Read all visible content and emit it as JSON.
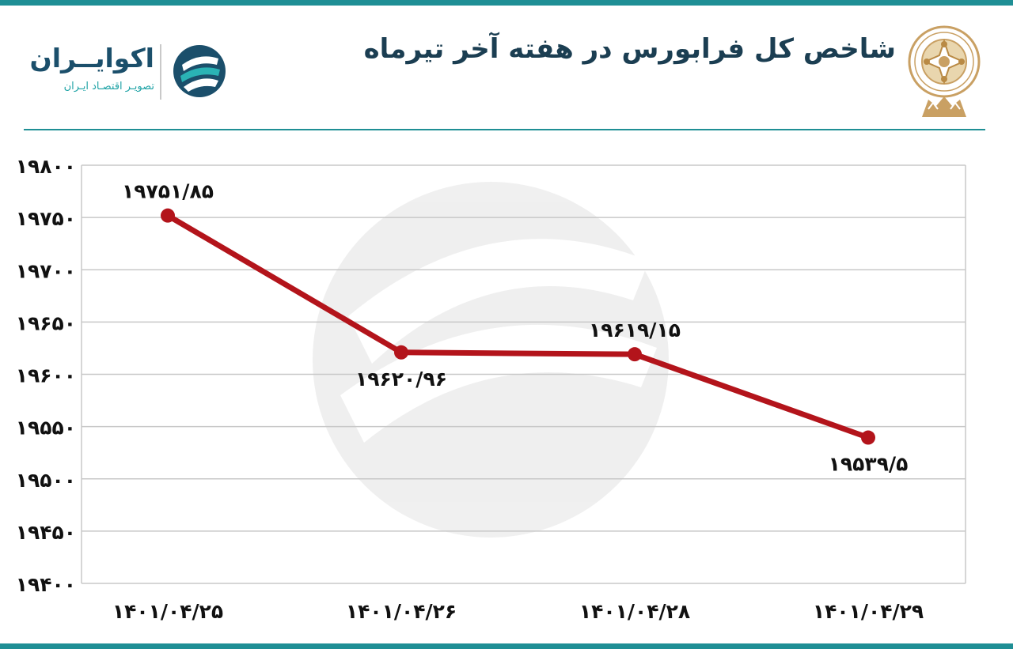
{
  "header": {
    "title": "شاخص کل فرابورس در هفته آخر تیرماه",
    "brand_name": "اکوایــران",
    "brand_tagline": "تصویـر اقتصـاد ایـران"
  },
  "colors": {
    "accent_teal": "#1f8f95",
    "line": "#b3141b",
    "grid": "#c8c8c8",
    "seal_gold": "#c9a063"
  },
  "icons": [
    "ecoiran-logo-icon",
    "stock-exchange-seal-icon"
  ],
  "chart_data": {
    "type": "line",
    "categories": [
      "۱۴۰۱/۰۴/۲۵",
      "۱۴۰۱/۰۴/۲۶",
      "۱۴۰۱/۰۴/۲۸",
      "۱۴۰۱/۰۴/۲۹"
    ],
    "values": [
      19751.85,
      19620.96,
      19619.15,
      19539.5
    ],
    "data_labels": [
      "۱۹۷۵۱/۸۵",
      "۱۹۶۲۰/۹۶",
      "۱۹۶۱۹/۱۵",
      "۱۹۵۳۹/۵"
    ],
    "ylim": [
      19400,
      19800
    ],
    "yticks": [
      19400,
      19450,
      19500,
      19550,
      19600,
      19650,
      19700,
      19750,
      19800
    ],
    "ytick_labels": [
      "۱۹۴۰۰",
      "۱۹۴۵۰",
      "۱۹۵۰۰",
      "۱۹۵۵۰",
      "۱۹۶۰۰",
      "۱۹۶۵۰",
      "۱۹۷۰۰",
      "۱۹۷۵۰",
      "۱۹۸۰۰"
    ],
    "grid": true,
    "legend": "none",
    "title": "",
    "xlabel": "",
    "ylabel": ""
  }
}
